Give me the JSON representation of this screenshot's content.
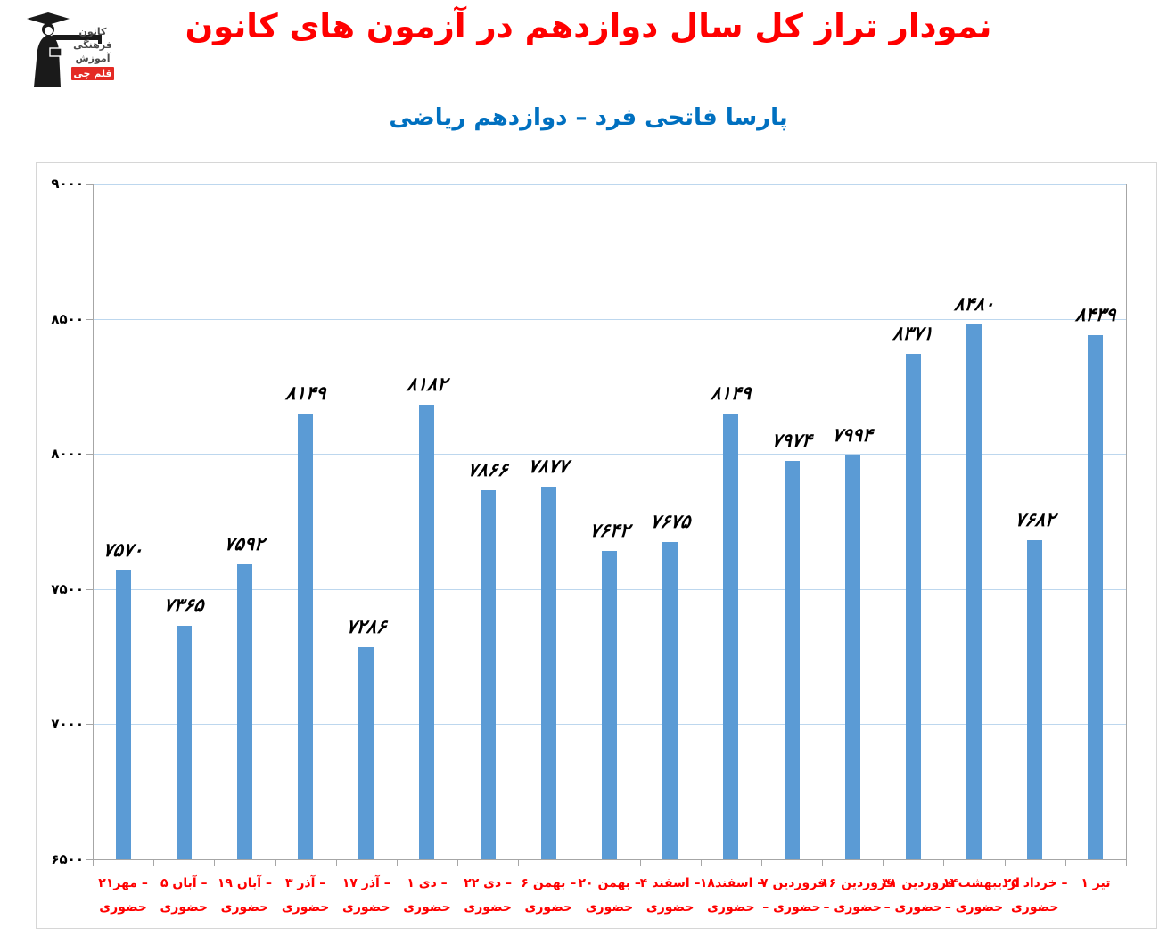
{
  "logo": {
    "lines": [
      "کانون",
      "فرهنگی",
      "آموزش"
    ],
    "badge": "قلم چی",
    "badge_color": "#e42a24",
    "figure_color": "#1a1a1a"
  },
  "header": {
    "title": "نمودار تراز کل سال دوازدهم در آزمون های کانون",
    "subtitle": "پارسا فاتحی فرد – دوازدهم ریاضی",
    "title_color": "#ff0000",
    "subtitle_color": "#0070c0"
  },
  "chart_data": {
    "type": "bar",
    "title": "نمودار تراز کل سال دوازدهم در آزمون های کانون",
    "subtitle": "پارسا فاتحی فرد – دوازدهم ریاضی",
    "categories": [
      "۲۱مهر – حضوری",
      "۵ آبان – حضوری",
      "۱۹ آبان – حضوری",
      "۳ آذر – حضوری",
      "۱۷ آذر – حضوری",
      "۱ دی – حضوری",
      "۲۲ دی – حضوری",
      "۶ بهمن – حضوری",
      "۲۰ بهمن – حضوری",
      "۴ اسفند – حضوری",
      "۱۸اسفند – حضوری",
      "۷ فروردین – حضوری",
      "۱۶ فروردین – حضوری",
      "۳۱ فروردین – حضوری",
      "۱۴اردیبهشت – حضوری",
      "۲۵ خرداد – حضوری",
      "۱ تیر"
    ],
    "category_lines": [
      [
        "۲۱مهر –",
        "حضوری"
      ],
      [
        "۵ آبان –",
        "حضوری"
      ],
      [
        "۱۹ آبان –",
        "حضوری"
      ],
      [
        "۳ آذر –",
        "حضوری"
      ],
      [
        "۱۷ آذر –",
        "حضوری"
      ],
      [
        "۱ دی –",
        "حضوری"
      ],
      [
        "۲۲ دی –",
        "حضوری"
      ],
      [
        "۶ بهمن –",
        "حضوری"
      ],
      [
        "۲۰ بهمن –",
        "حضوری"
      ],
      [
        "۴ اسفند –",
        "حضوری"
      ],
      [
        "۱۸اسفند –",
        "حضوری"
      ],
      [
        "۷ فروردین",
        "– حضوری"
      ],
      [
        "۱۶ فروردین",
        "– حضوری"
      ],
      [
        "۳۱ فروردین",
        "– حضوری"
      ],
      [
        "۱۴اردیبهشت",
        "– حضوری"
      ],
      [
        "۲۵ خرداد –",
        "حضوری"
      ],
      [
        "۱ تیر",
        ""
      ]
    ],
    "values": [
      7570,
      7365,
      7592,
      8149,
      7286,
      8182,
      7866,
      7877,
      7642,
      7675,
      8149,
      7974,
      7994,
      8371,
      8480,
      7682,
      8439
    ],
    "value_labels": [
      "۷۵۷۰",
      "۷۳۶۵",
      "۷۵۹۲",
      "۸۱۴۹",
      "۷۲۸۶",
      "۸۱۸۲",
      "۷۸۶۶",
      "۷۸۷۷",
      "۷۶۴۲",
      "۷۶۷۵",
      "۸۱۴۹",
      "۷۹۷۴",
      "۷۹۹۴",
      "۸۳۷۱",
      "۸۴۸۰",
      "۷۶۸۲",
      "۸۴۳۹"
    ],
    "ylim": [
      6500,
      9000
    ],
    "yticks": [
      6500,
      7000,
      7500,
      8000,
      8500,
      9000
    ],
    "ytick_labels": [
      "۶۵۰۰",
      "۷۰۰۰",
      "۷۵۰۰",
      "۸۰۰۰",
      "۸۵۰۰",
      "۹۰۰۰"
    ],
    "grid": true,
    "legend": "none",
    "colors": {
      "bar": "#5b9bd5",
      "grid": "#bdd7ee",
      "axis": "#a6a6a6",
      "value_label": "#000000",
      "xtick_label": "#ff0000",
      "ytick_label": "#000000"
    }
  }
}
